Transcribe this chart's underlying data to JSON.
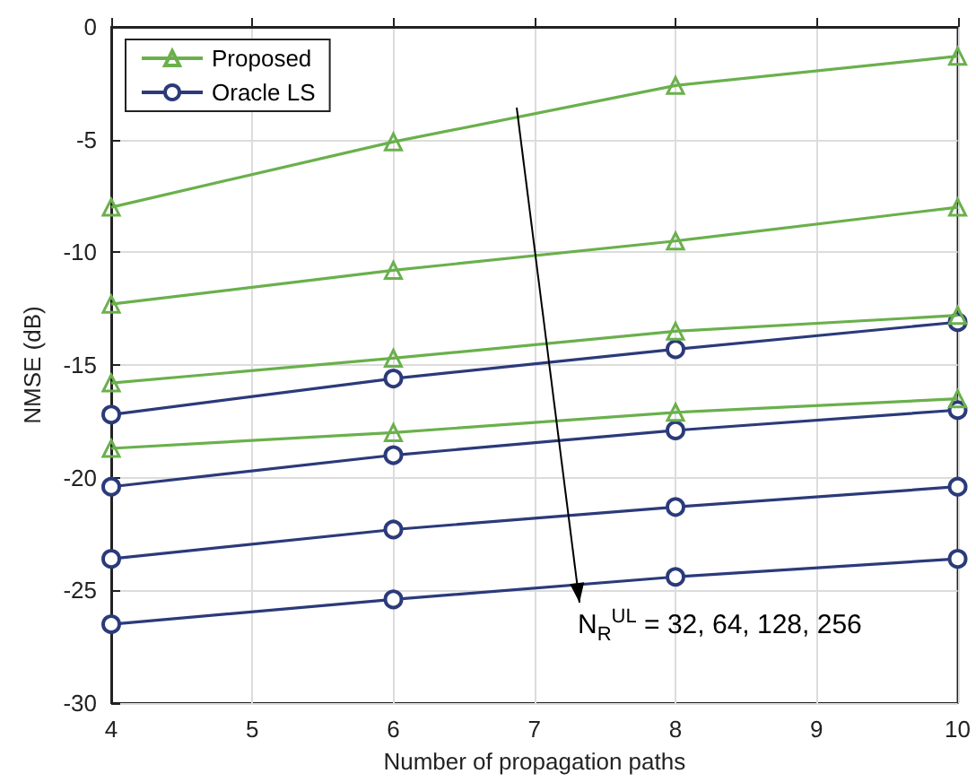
{
  "chart_data": {
    "type": "line",
    "xlabel": "Number of propagation paths",
    "ylabel": "NMSE (dB)",
    "x": [
      4,
      6,
      8,
      10
    ],
    "series": [
      {
        "name": "Proposed",
        "color": "#6ab04c",
        "marker": "triangle",
        "values": [
          -8.0,
          -5.1,
          -2.6,
          -1.3
        ]
      },
      {
        "name": "Oracle LS",
        "color": "#2b3a7a",
        "marker": "circle",
        "values": [
          -17.2,
          -15.6,
          -14.3,
          -13.1
        ]
      },
      {
        "color": "#6ab04c",
        "marker": "triangle",
        "values": [
          -12.3,
          -10.8,
          -9.5,
          -8.0
        ]
      },
      {
        "color": "#6ab04c",
        "marker": "triangle",
        "values": [
          -15.8,
          -14.7,
          -13.5,
          -12.8
        ]
      },
      {
        "color": "#6ab04c",
        "marker": "triangle",
        "values": [
          -18.7,
          -18.0,
          -17.1,
          -16.5
        ]
      },
      {
        "color": "#2b3a7a",
        "marker": "circle",
        "values": [
          -20.4,
          -19.0,
          -17.9,
          -17.0
        ]
      },
      {
        "color": "#2b3a7a",
        "marker": "circle",
        "values": [
          -23.6,
          -22.3,
          -21.3,
          -20.4
        ]
      },
      {
        "color": "#2b3a7a",
        "marker": "circle",
        "values": [
          -26.5,
          -25.4,
          -24.4,
          -23.6
        ]
      }
    ],
    "xlim": [
      4,
      10
    ],
    "xticks": [
      4,
      5,
      6,
      7,
      8,
      9,
      10
    ],
    "ylim": [
      -30,
      0
    ],
    "yticks": [
      -30,
      -25,
      -20,
      -15,
      -10,
      -5,
      0
    ],
    "annotations": [
      "N$_{R}$$^{UL}$ = 32, 64, 128, 256"
    ],
    "grid": true,
    "legend": "top left",
    "line_style": "solid"
  }
}
